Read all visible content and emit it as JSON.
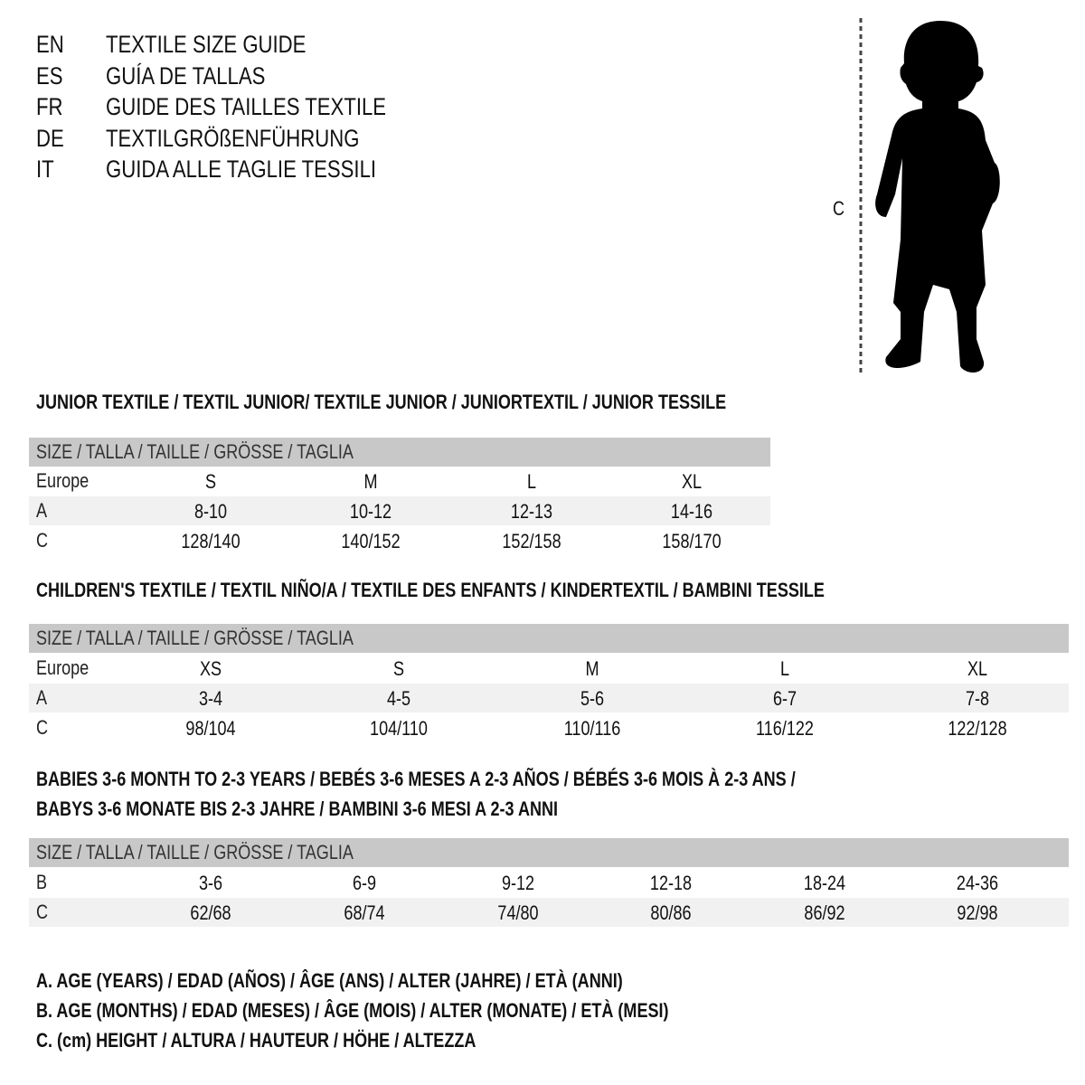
{
  "titles": [
    {
      "code": "EN",
      "text": "TEXTILE SIZE GUIDE"
    },
    {
      "code": "ES",
      "text": "GUÍA DE TALLAS"
    },
    {
      "code": "FR",
      "text": "GUIDE DES TAILLES TEXTILE"
    },
    {
      "code": "DE",
      "text": "TEXTILGRÖßENFÜHRUNG"
    },
    {
      "code": "IT",
      "text": "GUIDA ALLE TAGLIE TESSILI"
    }
  ],
  "figure": {
    "measure_label": "C",
    "icon": "child-silhouette-icon"
  },
  "size_header": "SIZE / TALLA / TAILLE / GRÖSSE / TAGLIA",
  "junior": {
    "title": "JUNIOR TEXTILE / TEXTIL JUNIOR/ TEXTILE JUNIOR / JUNIORTEXTIL / JUNIOR TESSILE",
    "rows": [
      {
        "label": "Europe",
        "values": [
          "S",
          "M",
          "L",
          "XL"
        ]
      },
      {
        "label": "A",
        "values": [
          "8-10",
          "10-12",
          "12-13",
          "14-16"
        ]
      },
      {
        "label": "C",
        "values": [
          "128/140",
          "140/152",
          "152/158",
          "158/170"
        ]
      }
    ]
  },
  "children": {
    "title": "CHILDREN'S TEXTILE / TEXTIL NIÑO/A / TEXTILE DES ENFANTS / KINDERTEXTIL / BAMBINI TESSILE",
    "rows": [
      {
        "label": "Europe",
        "values": [
          "XS",
          "S",
          "M",
          "L",
          "XL"
        ]
      },
      {
        "label": "A",
        "values": [
          "3-4",
          "4-5",
          "5-6",
          "6-7",
          "7-8"
        ]
      },
      {
        "label": "C",
        "values": [
          "98/104",
          "104/110",
          "110/116",
          "116/122",
          "122/128"
        ]
      }
    ]
  },
  "babies": {
    "title_line1": "BABIES 3-6 MONTH TO 2-3 YEARS / BEBÉS 3-6 MESES A 2-3 AÑOS / BÉBÉS 3-6 MOIS À 2-3 ANS /",
    "title_line2": "BABYS 3-6 MONATE BIS 2-3 JAHRE / BAMBINI 3-6 MESI A 2-3 ANNI",
    "rows": [
      {
        "label": "B",
        "values": [
          "3-6",
          "6-9",
          "9-12",
          "12-18",
          "18-24",
          "24-36"
        ]
      },
      {
        "label": "C",
        "values": [
          "62/68",
          "68/74",
          "74/80",
          "80/86",
          "86/92",
          "92/98"
        ]
      }
    ]
  },
  "legend": [
    "A. AGE (YEARS) / EDAD (AÑOS) / ÂGE (ANS) / ALTER (JAHRE) / ETÀ (ANNI)",
    "B. AGE (MONTHS) / EDAD (MESES) / ÂGE (MOIS) / ALTER (MONATE) / ETÀ (MESI)",
    "C. (cm) HEIGHT / ALTURA / HAUTEUR / HÖHE / ALTEZZA"
  ],
  "colors": {
    "header_gray": "#c8c8c8",
    "alt_row": "#f1f1f1",
    "text": "#111111"
  }
}
